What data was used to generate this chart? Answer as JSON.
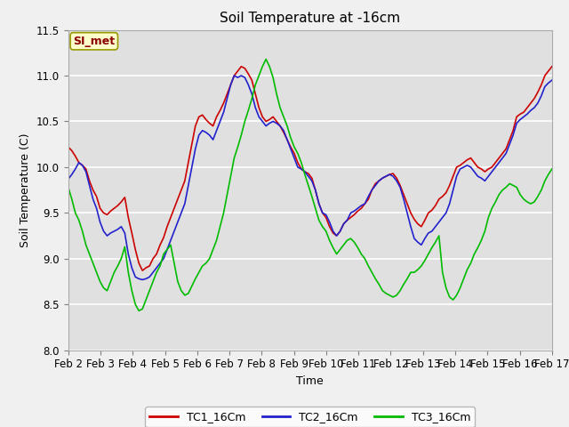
{
  "title": "Soil Temperature at -16cm",
  "xlabel": "Time",
  "ylabel": "Soil Temperature (C)",
  "ylim": [
    8.0,
    11.5
  ],
  "fig_facecolor": "#f0f0f0",
  "plot_facecolor": "#e0e0e0",
  "legend_label": "SI_met",
  "series_colors": [
    "#cc0000",
    "#2222cc",
    "#00bb00"
  ],
  "series_names": [
    "TC1_16Cm",
    "TC2_16Cm",
    "TC3_16Cm"
  ],
  "x_tick_labels": [
    "Feb 2",
    "Feb 3",
    "Feb 4",
    "Feb 5",
    "Feb 6",
    "Feb 7",
    "Feb 8",
    "Feb 9",
    "Feb 10",
    "Feb 11",
    "Feb 12",
    "Feb 13",
    "Feb 14",
    "Feb 15",
    "Feb 16",
    "Feb 17"
  ],
  "tc1": [
    10.22,
    10.18,
    10.12,
    10.05,
    10.02,
    9.98,
    9.85,
    9.75,
    9.68,
    9.55,
    9.5,
    9.48,
    9.52,
    9.55,
    9.58,
    9.62,
    9.67,
    9.45,
    9.28,
    9.1,
    8.95,
    8.87,
    8.9,
    8.92,
    9.0,
    9.05,
    9.15,
    9.23,
    9.35,
    9.45,
    9.55,
    9.65,
    9.75,
    9.85,
    10.05,
    10.25,
    10.45,
    10.55,
    10.57,
    10.52,
    10.48,
    10.45,
    10.55,
    10.62,
    10.7,
    10.8,
    10.9,
    11.0,
    11.05,
    11.1,
    11.08,
    11.02,
    10.95,
    10.8,
    10.65,
    10.55,
    10.5,
    10.52,
    10.55,
    10.5,
    10.45,
    10.38,
    10.3,
    10.22,
    10.15,
    10.05,
    9.98,
    9.95,
    9.93,
    9.88,
    9.75,
    9.6,
    9.5,
    9.45,
    9.35,
    9.28,
    9.25,
    9.3,
    9.38,
    9.42,
    9.45,
    9.48,
    9.52,
    9.55,
    9.6,
    9.65,
    9.75,
    9.82,
    9.85,
    9.88,
    9.9,
    9.92,
    9.93,
    9.88,
    9.8,
    9.7,
    9.6,
    9.5,
    9.43,
    9.38,
    9.35,
    9.42,
    9.5,
    9.53,
    9.58,
    9.65,
    9.68,
    9.72,
    9.8,
    9.9,
    10.0,
    10.02,
    10.05,
    10.08,
    10.1,
    10.05,
    10.0,
    9.98,
    9.95,
    9.98,
    10.0,
    10.05,
    10.1,
    10.15,
    10.2,
    10.3,
    10.4,
    10.55,
    10.58,
    10.6,
    10.65,
    10.7,
    10.75,
    10.82,
    10.9,
    11.0,
    11.05,
    11.1
  ],
  "tc2": [
    9.87,
    9.92,
    9.98,
    10.05,
    10.02,
    9.95,
    9.8,
    9.65,
    9.55,
    9.4,
    9.3,
    9.25,
    9.28,
    9.3,
    9.32,
    9.35,
    9.28,
    9.05,
    8.9,
    8.8,
    8.78,
    8.77,
    8.78,
    8.8,
    8.85,
    8.9,
    8.95,
    9.0,
    9.1,
    9.2,
    9.3,
    9.4,
    9.5,
    9.6,
    9.8,
    10.0,
    10.2,
    10.35,
    10.4,
    10.38,
    10.35,
    10.3,
    10.4,
    10.5,
    10.6,
    10.75,
    10.9,
    11.0,
    10.98,
    11.0,
    10.98,
    10.9,
    10.8,
    10.65,
    10.55,
    10.5,
    10.45,
    10.48,
    10.5,
    10.48,
    10.45,
    10.4,
    10.3,
    10.2,
    10.1,
    10.0,
    9.98,
    9.95,
    9.9,
    9.85,
    9.75,
    9.6,
    9.5,
    9.48,
    9.4,
    9.3,
    9.25,
    9.3,
    9.38,
    9.42,
    9.5,
    9.52,
    9.55,
    9.58,
    9.6,
    9.68,
    9.75,
    9.8,
    9.85,
    9.88,
    9.9,
    9.92,
    9.9,
    9.85,
    9.78,
    9.65,
    9.5,
    9.35,
    9.22,
    9.18,
    9.15,
    9.22,
    9.28,
    9.3,
    9.35,
    9.4,
    9.45,
    9.5,
    9.6,
    9.75,
    9.9,
    9.98,
    10.0,
    10.02,
    10.0,
    9.95,
    9.9,
    9.88,
    9.85,
    9.9,
    9.95,
    10.0,
    10.05,
    10.1,
    10.15,
    10.25,
    10.35,
    10.48,
    10.52,
    10.55,
    10.58,
    10.62,
    10.65,
    10.7,
    10.78,
    10.88,
    10.92,
    10.95
  ],
  "tc3": [
    9.78,
    9.65,
    9.5,
    9.42,
    9.3,
    9.15,
    9.05,
    8.95,
    8.85,
    8.75,
    8.68,
    8.65,
    8.75,
    8.85,
    8.92,
    9.0,
    9.13,
    8.85,
    8.65,
    8.5,
    8.43,
    8.45,
    8.55,
    8.65,
    8.75,
    8.85,
    8.92,
    9.05,
    9.1,
    9.15,
    8.95,
    8.75,
    8.65,
    8.6,
    8.62,
    8.7,
    8.78,
    8.85,
    8.92,
    8.95,
    9.0,
    9.1,
    9.2,
    9.35,
    9.5,
    9.7,
    9.9,
    10.1,
    10.22,
    10.35,
    10.5,
    10.62,
    10.75,
    10.9,
    11.0,
    11.1,
    11.18,
    11.1,
    10.98,
    10.8,
    10.65,
    10.55,
    10.45,
    10.32,
    10.22,
    10.15,
    10.05,
    9.92,
    9.8,
    9.68,
    9.55,
    9.42,
    9.35,
    9.3,
    9.2,
    9.12,
    9.05,
    9.1,
    9.15,
    9.2,
    9.22,
    9.18,
    9.12,
    9.05,
    9.0,
    8.92,
    8.85,
    8.78,
    8.72,
    8.65,
    8.62,
    8.6,
    8.58,
    8.6,
    8.65,
    8.72,
    8.78,
    8.85,
    8.85,
    8.88,
    8.92,
    8.98,
    9.05,
    9.12,
    9.18,
    9.25,
    8.85,
    8.68,
    8.58,
    8.55,
    8.6,
    8.68,
    8.78,
    8.88,
    8.95,
    9.05,
    9.12,
    9.2,
    9.3,
    9.45,
    9.55,
    9.62,
    9.7,
    9.75,
    9.78,
    9.82,
    9.8,
    9.78,
    9.7,
    9.65,
    9.62,
    9.6,
    9.62,
    9.68,
    9.75,
    9.85,
    9.92,
    9.98
  ]
}
